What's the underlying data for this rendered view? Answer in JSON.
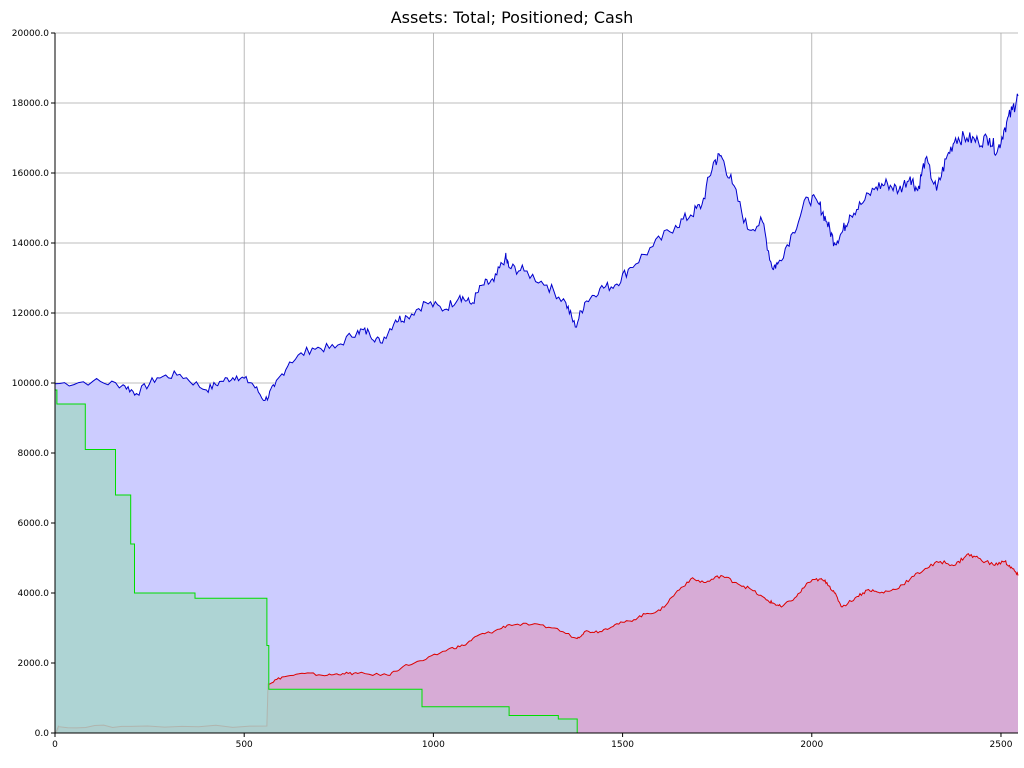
{
  "chart_data": {
    "type": "area",
    "title": "Assets: Total; Positioned; Cash",
    "xlabel": "",
    "ylabel": "",
    "xlim": [
      0,
      2545
    ],
    "ylim": [
      0,
      20000
    ],
    "grid": true,
    "x_ticks": [
      "0",
      "500",
      "1000",
      "1500",
      "2000",
      "2500"
    ],
    "x_tick_values": [
      0,
      500,
      1000,
      1500,
      2000,
      2500
    ],
    "y_ticks": [
      "0.0",
      "2000.0",
      "4000.0",
      "6000.0",
      "8000.0",
      "10000.0",
      "12000.0",
      "14000.0",
      "16000.0",
      "18000.0",
      "20000.0"
    ],
    "y_tick_values": [
      0,
      2000,
      4000,
      6000,
      8000,
      10000,
      12000,
      14000,
      16000,
      18000,
      20000
    ],
    "series": [
      {
        "line_color": "#0000cc",
        "fill_color": "#ccccff",
        "x": [
          0,
          100,
          180,
          215,
          270,
          330,
          400,
          440,
          480,
          520,
          555,
          580,
          620,
          680,
          740,
          800,
          830,
          860,
          900,
          930,
          980,
          1030,
          1070,
          1100,
          1130,
          1160,
          1190,
          1200,
          1240,
          1300,
          1350,
          1375,
          1400,
          1440,
          1480,
          1520,
          1580,
          1640,
          1680,
          1710,
          1740,
          1760,
          1790,
          1830,
          1870,
          1895,
          1910,
          1950,
          1990,
          2020,
          2040,
          2060,
          2080,
          2100,
          2130,
          2170,
          2200,
          2230,
          2260,
          2280,
          2300,
          2330,
          2355,
          2380,
          2410,
          2440,
          2470,
          2490,
          2510,
          2530,
          2545
        ],
        "values": [
          9980,
          10050,
          9950,
          9700,
          10150,
          10250,
          9800,
          10050,
          10200,
          10000,
          9500,
          9900,
          10600,
          11000,
          11000,
          11500,
          11450,
          11150,
          11800,
          11900,
          12300,
          12100,
          12500,
          12250,
          12800,
          12900,
          13600,
          13300,
          13200,
          12800,
          12300,
          11600,
          12300,
          12700,
          12800,
          13300,
          13900,
          14500,
          14800,
          15100,
          16300,
          16500,
          15700,
          14400,
          14600,
          13300,
          13400,
          14300,
          15300,
          15100,
          14600,
          14000,
          14300,
          14800,
          15100,
          15600,
          15700,
          15500,
          15900,
          15500,
          16400,
          15500,
          16400,
          17000,
          17000,
          16900,
          17000,
          16600,
          17300,
          17800,
          18200
        ]
      },
      {
        "line_color": "#dd0000",
        "fill_color": "#d8a5cf",
        "x": [
          0,
          10,
          200,
          560,
          563,
          600,
          660,
          720,
          760,
          800,
          880,
          920,
          980,
          1040,
          1080,
          1120,
          1160,
          1200,
          1260,
          1320,
          1380,
          1400,
          1440,
          1480,
          1520,
          1560,
          1600,
          1640,
          1680,
          1720,
          1760,
          1800,
          1840,
          1880,
          1900,
          1920,
          1960,
          1990,
          2020,
          2040,
          2060,
          2080,
          2120,
          2150,
          2180,
          2220,
          2260,
          2300,
          2340,
          2380,
          2410,
          2440,
          2480,
          2510,
          2530,
          2545
        ],
        "values": [
          0,
          180,
          190,
          200,
          1400,
          1600,
          1700,
          1650,
          1700,
          1700,
          1650,
          1900,
          2100,
          2400,
          2500,
          2800,
          2900,
          3100,
          3100,
          3000,
          2700,
          2900,
          2900,
          3100,
          3200,
          3400,
          3500,
          4000,
          4400,
          4300,
          4500,
          4300,
          4100,
          3800,
          3700,
          3600,
          3900,
          4300,
          4400,
          4300,
          4000,
          3600,
          3900,
          4100,
          4000,
          4100,
          4400,
          4700,
          4900,
          4800,
          5100,
          5000,
          4800,
          4900,
          4700,
          4500
        ]
      },
      {
        "line_color": "#00dd00",
        "fill_color": "#a8d5cd",
        "step": true,
        "x": [
          0,
          5,
          80,
          160,
          200,
          210,
          370,
          560,
          565,
          570,
          970,
          1200,
          1330,
          1380,
          2545
        ],
        "values": [
          9800,
          9400,
          8100,
          6800,
          5400,
          4000,
          3850,
          2500,
          1250,
          1250,
          750,
          500,
          400,
          0,
          0
        ]
      }
    ]
  }
}
